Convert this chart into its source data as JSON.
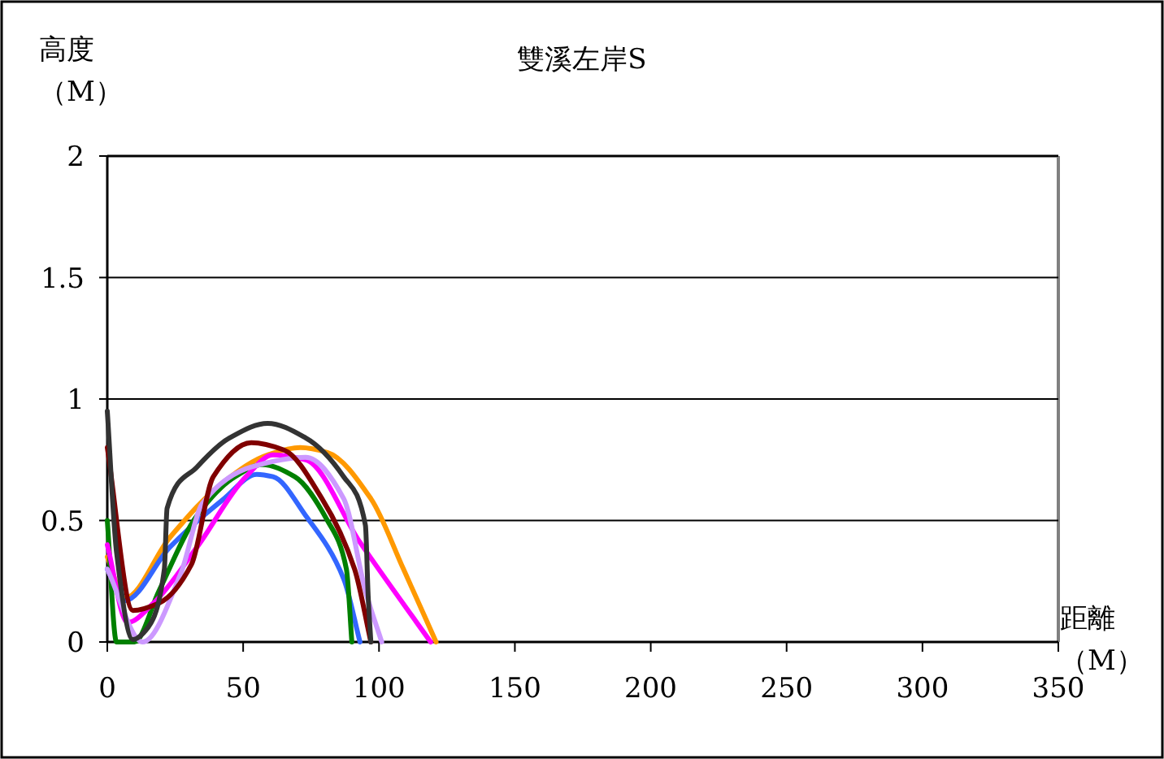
{
  "chart_data": {
    "type": "line",
    "title": "雙溪左岸S",
    "xlabel": "距離（M）",
    "ylabel": "高度（M）",
    "xlim": [
      0,
      350
    ],
    "xticks": [
      0,
      50,
      100,
      150,
      200,
      250,
      300,
      350
    ],
    "ylim": [
      0,
      2
    ],
    "yticks": [
      0,
      0.5,
      1,
      1.5,
      2
    ],
    "grid": "y",
    "marker": "none",
    "series": [
      {
        "color": "#ff9900",
        "x": [
          0,
          6.4,
          23,
          43,
          59,
          71,
          81,
          97,
          109,
          121
        ],
        "values": [
          0.35,
          0.18,
          0.43,
          0.66,
          0.77,
          0.8,
          0.78,
          0.59,
          0.3,
          0
        ]
      },
      {
        "color": "#3366ff",
        "x": [
          0,
          6.4,
          23,
          43,
          55,
          61,
          73,
          87,
          93
        ],
        "values": [
          0.3,
          0.17,
          0.39,
          0.59,
          0.69,
          0.68,
          0.52,
          0.26,
          0
        ]
      },
      {
        "color": "#008000",
        "x": [
          0,
          3.4,
          10,
          19,
          33,
          47,
          57,
          69,
          81,
          88,
          90
        ],
        "values": [
          0.5,
          0,
          0,
          0.21,
          0.52,
          0.68,
          0.73,
          0.68,
          0.5,
          0.3,
          0
        ]
      },
      {
        "color": "#ff00ff",
        "x": [
          0,
          7.4,
          17,
          33,
          51,
          61,
          73,
          93,
          119
        ],
        "values": [
          0.4,
          0.08,
          0.16,
          0.39,
          0.68,
          0.77,
          0.75,
          0.41,
          0
        ]
      },
      {
        "color": "#cc99ff",
        "x": [
          0,
          13,
          27,
          35,
          53,
          73,
          87,
          95,
          101
        ],
        "values": [
          0.3,
          0,
          0.28,
          0.57,
          0.72,
          0.76,
          0.59,
          0.21,
          0
        ]
      },
      {
        "color": "#800000",
        "x": [
          0,
          9.4,
          19,
          31,
          39,
          53,
          65,
          79,
          91,
          97
        ],
        "values": [
          0.8,
          0.13,
          0.16,
          0.32,
          0.68,
          0.82,
          0.79,
          0.59,
          0.3,
          0
        ]
      },
      {
        "color": "#333333",
        "x": [
          0,
          3.4,
          9.4,
          15,
          21,
          22,
          33,
          45,
          59,
          73,
          87,
          95,
          96,
          97
        ],
        "values": [
          0.95,
          0.37,
          0.01,
          0.06,
          0.3,
          0.55,
          0.72,
          0.84,
          0.9,
          0.84,
          0.68,
          0.48,
          0.19,
          0
        ]
      }
    ]
  }
}
